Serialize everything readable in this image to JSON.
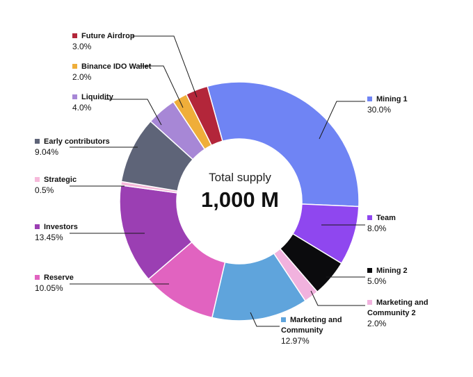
{
  "chart_data": {
    "type": "pie",
    "center_title": "Total supply",
    "center_value": "1,000 M",
    "slices": [
      {
        "label": "Mining 1",
        "value": 30.0,
        "value_label": "30.0%",
        "color": "#6F84F4"
      },
      {
        "label": "Team",
        "value": 8.0,
        "value_label": "8.0%",
        "color": "#8F47EF"
      },
      {
        "label": "Mining 2",
        "value": 5.0,
        "value_label": "5.0%",
        "color": "#0B0B0D"
      },
      {
        "label": "Marketing and Community 2",
        "value": 2.0,
        "value_label": "2.0%",
        "color": "#F1B2DE"
      },
      {
        "label": "Marketing and Community",
        "value": 12.97,
        "value_label": "12.97%",
        "color": "#5FA4DC"
      },
      {
        "label": "Reserve",
        "value": 10.05,
        "value_label": "10.05%",
        "color": "#E163C0"
      },
      {
        "label": "Investors",
        "value": 13.45,
        "value_label": "13.45%",
        "color": "#9B3FB3"
      },
      {
        "label": "Strategic",
        "value": 0.5,
        "value_label": "0.5%",
        "color": "#F6B9DA"
      },
      {
        "label": "Early contributors",
        "value": 9.04,
        "value_label": "9.04%",
        "color": "#5E6478"
      },
      {
        "label": "Liquidity",
        "value": 4.0,
        "value_label": "4.0%",
        "color": "#A787D6"
      },
      {
        "label": "Binance IDO Wallet",
        "value": 2.0,
        "value_label": "2.0%",
        "color": "#EFAE3A"
      },
      {
        "label": "Future Airdrop",
        "value": 3.0,
        "value_label": "3.0%",
        "color": "#B3263A"
      }
    ]
  }
}
